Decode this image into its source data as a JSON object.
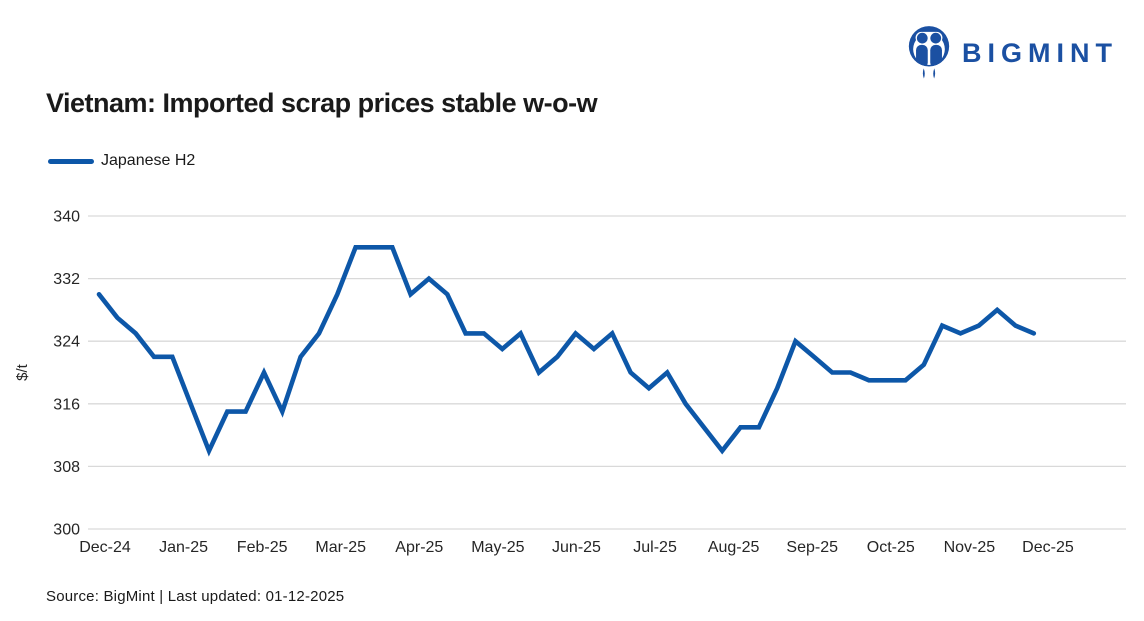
{
  "brand": {
    "name": "BIGMINT",
    "logo_color": "#1b50a2"
  },
  "header": {
    "title": "Vietnam: Imported scrap prices stable w-o-w"
  },
  "legend": [
    {
      "label": "Japanese H2",
      "color": "#0d57a8"
    }
  ],
  "chart_data": {
    "type": "line",
    "title": "Vietnam: Imported scrap prices stable w-o-w",
    "xlabel": "",
    "ylabel": "$/t",
    "ylim": [
      300,
      340
    ],
    "yticks": [
      300,
      308,
      316,
      324,
      332,
      340
    ],
    "grid": "horizontal",
    "gridline_color": "#d9d9d9",
    "axis_text_color": "#262626",
    "legend_position": "top-left",
    "x_frequency": "weekly",
    "x_tick_labels": [
      "Dec-24",
      "Jan-25",
      "Feb-25",
      "Mar-25",
      "Apr-25",
      "May-25",
      "Jun-25",
      "Jul-25",
      "Aug-25",
      "Sep-25",
      "Oct-25",
      "Nov-25",
      "Dec-25"
    ],
    "series": [
      {
        "name": "Japanese H2",
        "color": "#0d57a8",
        "values": [
          330,
          327,
          325,
          322,
          322,
          316,
          310,
          315,
          315,
          320,
          315,
          322,
          325,
          330,
          336,
          336,
          336,
          330,
          332,
          330,
          325,
          325,
          323,
          325,
          320,
          322,
          325,
          323,
          325,
          320,
          318,
          320,
          316,
          313,
          310,
          313,
          313,
          318,
          324,
          322,
          320,
          320,
          319,
          319,
          319,
          321,
          326,
          325,
          326,
          328,
          326,
          325
        ]
      }
    ]
  },
  "footer": {
    "source": "Source: BigMint | Last updated: 01-12-2025"
  }
}
